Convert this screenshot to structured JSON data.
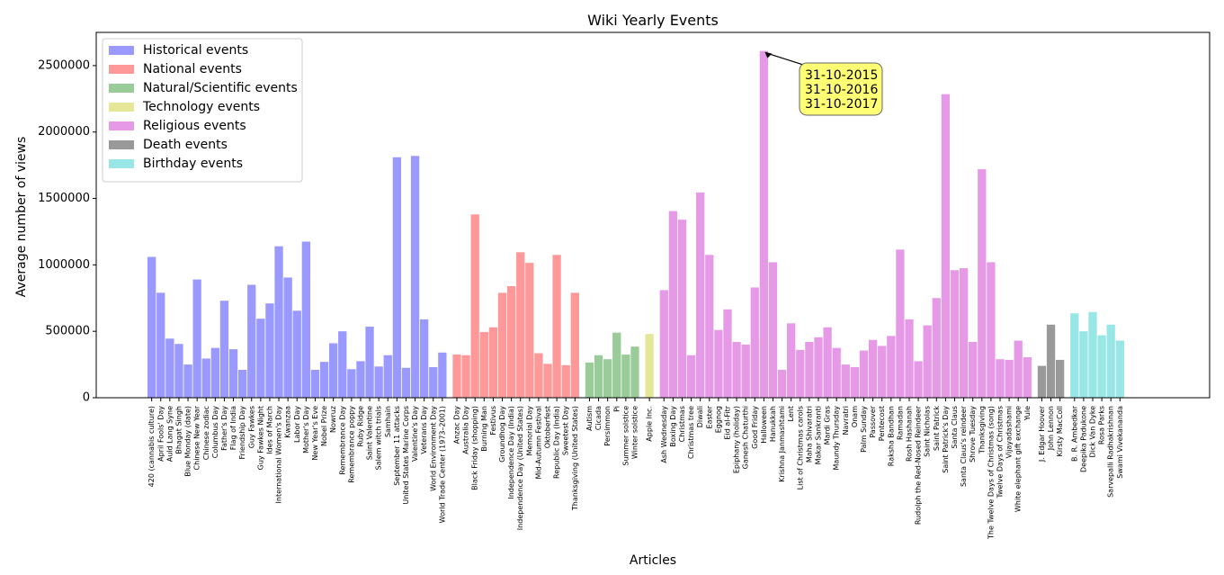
{
  "chart_data": {
    "type": "bar",
    "title": "Wiki Yearly Events",
    "xlabel": "Articles",
    "ylabel": "Average number of views",
    "ylim": [
      0,
      2750000
    ],
    "yticks": [
      0,
      500000,
      1000000,
      1500000,
      2000000,
      2500000
    ],
    "legend_position": "top-left",
    "grid": false,
    "series": [
      {
        "name": "Historical events",
        "color": "#9999ff",
        "items": [
          {
            "label": "420 (cannabis culture)",
            "value": 1060000
          },
          {
            "label": "April Fools' Day",
            "value": 790000
          },
          {
            "label": "Auld Lang Syne",
            "value": 445000
          },
          {
            "label": "Bhagat Singh",
            "value": 405000
          },
          {
            "label": "Blue Monday (date)",
            "value": 250000
          },
          {
            "label": "Chinese New Year",
            "value": 890000
          },
          {
            "label": "Chinese zodiac",
            "value": 295000
          },
          {
            "label": "Columbus Day",
            "value": 375000
          },
          {
            "label": "Father's Day",
            "value": 730000
          },
          {
            "label": "Flag of India",
            "value": 365000
          },
          {
            "label": "Friendship Day",
            "value": 210000
          },
          {
            "label": "Guy Fawkes",
            "value": 850000
          },
          {
            "label": "Guy Fawkes Night",
            "value": 595000
          },
          {
            "label": "Ides of March",
            "value": 710000
          },
          {
            "label": "International Women's Day",
            "value": 1140000
          },
          {
            "label": "Kwanzaa",
            "value": 905000
          },
          {
            "label": "Labor Day",
            "value": 655000
          },
          {
            "label": "Mother's Day",
            "value": 1175000
          },
          {
            "label": "New Year's Eve",
            "value": 210000
          },
          {
            "label": "Nobel Prize",
            "value": 270000
          },
          {
            "label": "Nowruz",
            "value": 410000
          },
          {
            "label": "Remembrance Day",
            "value": 500000
          },
          {
            "label": "Remembrance poppy",
            "value": 215000
          },
          {
            "label": "Ruby Ridge",
            "value": 275000
          },
          {
            "label": "Saint Valentine",
            "value": 535000
          },
          {
            "label": "Salem witch trials",
            "value": 235000
          },
          {
            "label": "Samhain",
            "value": 320000
          },
          {
            "label": "September 11 attacks",
            "value": 1810000
          },
          {
            "label": "United States Marine Corps",
            "value": 225000
          },
          {
            "label": "Valentine's Day",
            "value": 1820000
          },
          {
            "label": "Veterans Day",
            "value": 590000
          },
          {
            "label": "World Environment Day",
            "value": 230000
          },
          {
            "label": "World Trade Center (1973–2001)",
            "value": 340000
          }
        ]
      },
      {
        "name": "National events",
        "color": "#ff9999",
        "items": [
          {
            "label": "Anzac Day",
            "value": 325000
          },
          {
            "label": "Australia Day",
            "value": 320000
          },
          {
            "label": "Black Friday (shopping)",
            "value": 1380000
          },
          {
            "label": "Burning Man",
            "value": 495000
          },
          {
            "label": "Festivus",
            "value": 530000
          },
          {
            "label": "Groundhog Day",
            "value": 790000
          },
          {
            "label": "Independence Day (India)",
            "value": 840000
          },
          {
            "label": "Independence Day (United States)",
            "value": 1095000
          },
          {
            "label": "Memorial Day",
            "value": 1015000
          },
          {
            "label": "Mid-Autumn Festival",
            "value": 335000
          },
          {
            "label": "Oktoberfest",
            "value": 255000
          },
          {
            "label": "Republic Day (India)",
            "value": 1075000
          },
          {
            "label": "Sweetest Day",
            "value": 245000
          },
          {
            "label": "Thanksgiving (United States)",
            "value": 790000
          }
        ]
      },
      {
        "name": "Natural/Scientific events",
        "color": "#99cc99",
        "items": [
          {
            "label": "Autism",
            "value": 265000
          },
          {
            "label": "Cicada",
            "value": 320000
          },
          {
            "label": "Persimmon",
            "value": 290000
          },
          {
            "label": "Pi",
            "value": 490000
          },
          {
            "label": "Summer solstice",
            "value": 325000
          },
          {
            "label": "Winter solstice",
            "value": 385000
          }
        ]
      },
      {
        "name": "Technology events",
        "color": "#e6e699",
        "items": [
          {
            "label": "Apple Inc.",
            "value": 480000
          }
        ]
      },
      {
        "name": "Religious events",
        "color": "#e699e6",
        "items": [
          {
            "label": "Ash Wednesday",
            "value": 810000
          },
          {
            "label": "Boxing Day",
            "value": 1405000
          },
          {
            "label": "Christmas",
            "value": 1340000
          },
          {
            "label": "Christmas tree",
            "value": 320000
          },
          {
            "label": "Diwali",
            "value": 1545000
          },
          {
            "label": "Easter",
            "value": 1075000
          },
          {
            "label": "Eggnog",
            "value": 510000
          },
          {
            "label": "Eid al-Fitr",
            "value": 665000
          },
          {
            "label": "Epiphany (holiday)",
            "value": 420000
          },
          {
            "label": "Ganesh Chaturthi",
            "value": 400000
          },
          {
            "label": "Good Friday",
            "value": 830000
          },
          {
            "label": "Halloween",
            "value": 2610000
          },
          {
            "label": "Hanukkah",
            "value": 1020000
          },
          {
            "label": "Krishna Janmashtami",
            "value": 210000
          },
          {
            "label": "Lent",
            "value": 560000
          },
          {
            "label": "List of Christmas carols",
            "value": 360000
          },
          {
            "label": "Maha Shivaratri",
            "value": 420000
          },
          {
            "label": "Makar Sankranti",
            "value": 455000
          },
          {
            "label": "Mardi Gras",
            "value": 530000
          },
          {
            "label": "Maundy Thursday",
            "value": 375000
          },
          {
            "label": "Navratri",
            "value": 250000
          },
          {
            "label": "Onam",
            "value": 230000
          },
          {
            "label": "Palm Sunday",
            "value": 355000
          },
          {
            "label": "Passover",
            "value": 435000
          },
          {
            "label": "Pentecost",
            "value": 390000
          },
          {
            "label": "Raksha Bandhan",
            "value": 465000
          },
          {
            "label": "Ramadan",
            "value": 1115000
          },
          {
            "label": "Rosh Hashanah",
            "value": 590000
          },
          {
            "label": "Rudolph the Red-Nosed Reindeer",
            "value": 275000
          },
          {
            "label": "Saint Nicholas",
            "value": 545000
          },
          {
            "label": "Saint Patrick",
            "value": 750000
          },
          {
            "label": "Saint Patrick's Day",
            "value": 2285000
          },
          {
            "label": "Santa Claus",
            "value": 960000
          },
          {
            "label": "Santa Claus's reindeer",
            "value": 975000
          },
          {
            "label": "Shrove Tuesday",
            "value": 420000
          },
          {
            "label": "Thanksgiving",
            "value": 1720000
          },
          {
            "label": "The Twelve Days of Christmas (song)",
            "value": 1020000
          },
          {
            "label": "Twelve Days of Christmas",
            "value": 290000
          },
          {
            "label": "Vijayadashami",
            "value": 285000
          },
          {
            "label": "White elephant gift exchange",
            "value": 430000
          },
          {
            "label": "Yule",
            "value": 305000
          }
        ]
      },
      {
        "name": "Death events",
        "color": "#999999",
        "items": [
          {
            "label": "J. Edgar Hoover",
            "value": 240000
          },
          {
            "label": "John Lennon",
            "value": 550000
          },
          {
            "label": "Kirsty MacColl",
            "value": 285000
          }
        ]
      },
      {
        "name": "Birthday events",
        "color": "#99e6e6",
        "items": [
          {
            "label": "B. R. Ambedkar",
            "value": 635000
          },
          {
            "label": "Deepika Padukone",
            "value": 500000
          },
          {
            "label": "Dick Van Dyke",
            "value": 645000
          },
          {
            "label": "Rosa Parks",
            "value": 470000
          },
          {
            "label": "Sarvepalli Radhakrishnan",
            "value": 550000
          },
          {
            "label": "Swami Vivekananda",
            "value": 430000
          }
        ]
      }
    ],
    "annotation": {
      "target_label": "Halloween",
      "lines": [
        "31-10-2015",
        "31-10-2016",
        "31-10-2017"
      ],
      "box_color": "#ffff66"
    }
  }
}
